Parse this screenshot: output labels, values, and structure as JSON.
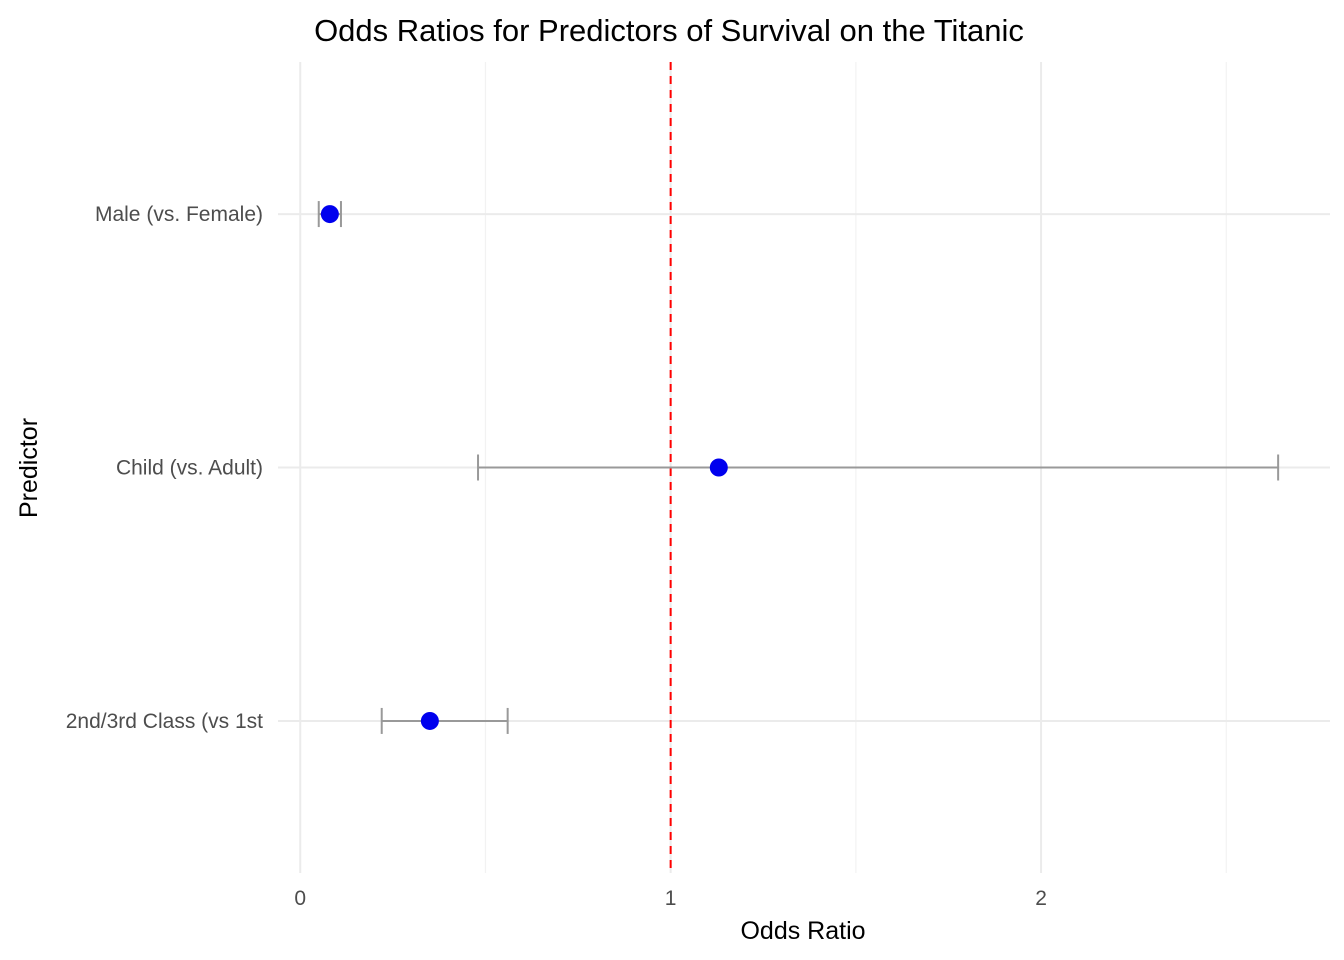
{
  "chart_data": {
    "type": "scatter",
    "title": "Odds Ratios for Predictors of Survival on the Titanic",
    "xlabel": "Odds Ratio",
    "ylabel": "Predictor",
    "xlim": [
      -0.06,
      2.78
    ],
    "x_ticks": [
      {
        "value": 0,
        "label": "0"
      },
      {
        "value": 1,
        "label": "1"
      },
      {
        "value": 2,
        "label": "2"
      }
    ],
    "x_minor_ticks": [
      0.5,
      1.5,
      2.5
    ],
    "categories": [
      "Male (vs. Female)",
      "Child (vs. Adult)",
      "2nd/3rd Class (vs 1st"
    ],
    "points": [
      {
        "category": "Male (vs. Female)",
        "odds_ratio": 0.08,
        "ci_low": 0.05,
        "ci_high": 0.11
      },
      {
        "category": "Child (vs. Adult)",
        "odds_ratio": 1.13,
        "ci_low": 0.48,
        "ci_high": 2.64
      },
      {
        "category": "2nd/3rd Class (vs 1st",
        "odds_ratio": 0.35,
        "ci_low": 0.22,
        "ci_high": 0.56
      }
    ],
    "reference_line": {
      "value": 1,
      "color": "#ff0000",
      "style": "dashed"
    },
    "point_color": "#0000ee",
    "errorbar_color": "#999999",
    "grid": true,
    "legend": "none"
  }
}
